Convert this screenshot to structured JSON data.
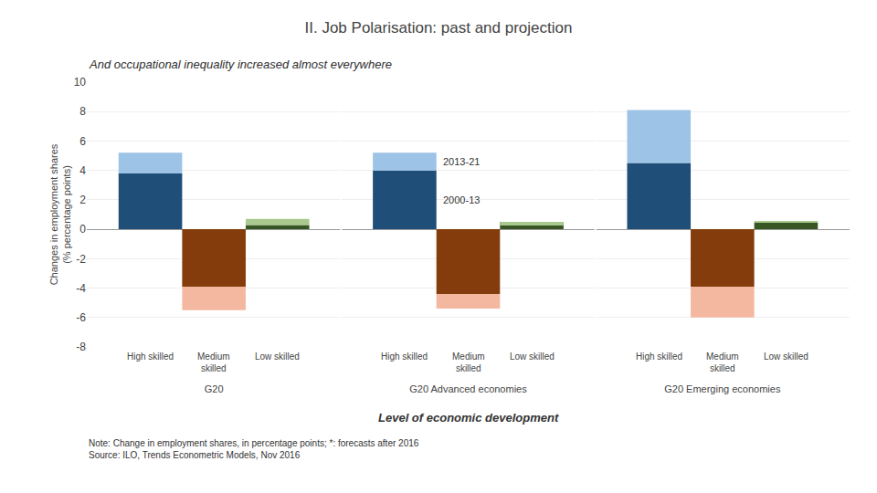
{
  "chart_data": {
    "type": "bar",
    "title": "II. Job Polarisation: past and projection",
    "subtitle": "And occupational inequality increased almost everywhere",
    "xlabel": "Level of economic development",
    "ylabel": "Changes in employment shares\n(% percentage points)",
    "note": "Note: Change in employment shares, in percentage points; *: forecasts after 2016\nSource: ILO, Trends Econometric Models, Nov 2016",
    "categories": [
      "G20",
      "G20 Advanced economies",
      "G20 Emerging economies"
    ],
    "series": [
      {
        "name": "High skilled",
        "periods": [
          {
            "name": "2000-13",
            "color": "#1F4E79",
            "values": [
              3.8,
              4.0,
              4.5
            ]
          },
          {
            "name": "2013-21",
            "color": "#9DC3E6",
            "values": [
              1.4,
              1.2,
              3.6
            ]
          }
        ]
      },
      {
        "name": "Medium\nskilled",
        "periods": [
          {
            "name": "2000-13",
            "color": "#843C0C",
            "values": [
              -3.9,
              -4.4,
              -3.9
            ]
          },
          {
            "name": "2013-21",
            "color": "#F4B8A0",
            "values": [
              -1.6,
              -1.0,
              -2.1
            ]
          }
        ]
      },
      {
        "name": "Low skilled",
        "periods": [
          {
            "name": "2000-13",
            "color": "#375623",
            "values": [
              0.28,
              0.5,
              0.45
            ]
          },
          {
            "name": "2013-21",
            "color": "#A9C98E",
            "values": [
              0.42,
              -0.25,
              0.1
            ]
          }
        ]
      }
    ],
    "ylim": [
      -8.0,
      10.0
    ],
    "yticks": [
      -8.0,
      -6.0,
      -4.0,
      -2.0,
      0.0,
      2.0,
      4.0,
      6.0,
      8.0,
      10.0
    ],
    "grid": true,
    "stacked": true
  }
}
